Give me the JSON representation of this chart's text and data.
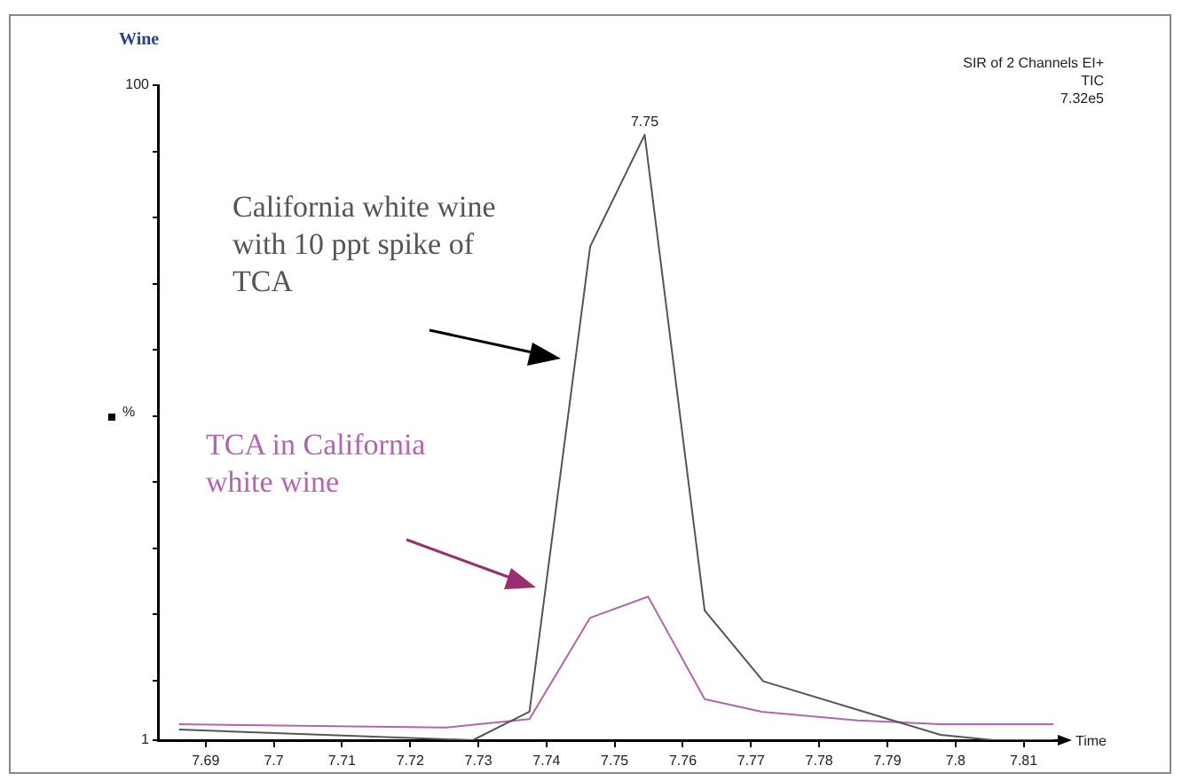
{
  "chart_data": {
    "type": "line",
    "title": "Wine",
    "ylabel": "%",
    "xlabel": "Time",
    "annotations": [
      "SIR of 2 Channels EI+",
      "TIC",
      "7.32e5",
      {
        "text": "7.75",
        "x": 7.7544,
        "y": 92.5
      }
    ],
    "xlim": [
      7.683,
      7.815
    ],
    "xticks": [
      7.69,
      7.7,
      7.71,
      7.72,
      7.73,
      7.74,
      7.75,
      7.76,
      7.77,
      7.78,
      7.79,
      7.8,
      7.81
    ],
    "ylim": [
      1,
      100
    ],
    "yticks": [
      1,
      {
        "value": 10,
        "label": null
      },
      {
        "value": 20,
        "label": null
      },
      {
        "value": 30,
        "label": null
      },
      {
        "value": 40,
        "label": null
      },
      {
        "value": 50,
        "label": null
      },
      {
        "value": 60,
        "label": null
      },
      {
        "value": 70,
        "label": null
      },
      {
        "value": 80,
        "label": null
      },
      {
        "value": 90,
        "label": null
      },
      100
    ],
    "grid": false,
    "legend": false,
    "marker": "none",
    "line_style": "solid",
    "series": [
      {
        "name": "California white wine with 10 ppt spike of TCA",
        "color": "#555555",
        "x": [
          7.6861,
          7.7292,
          7.7375,
          7.7464,
          7.7544,
          7.7632,
          7.7718,
          7.7978,
          7.8056,
          7.8144
        ],
        "values": [
          2.6,
          1,
          5.3,
          75.6,
          92.5,
          20.6,
          9.9,
          1.8,
          1,
          1
        ]
      },
      {
        "name": "TCA in California white wine",
        "color": "#b366ad",
        "x": [
          7.6861,
          7.7253,
          7.73,
          7.7375,
          7.7464,
          7.7549,
          7.7632,
          7.7716,
          7.7856,
          7.7978,
          7.8144
        ],
        "values": [
          3.4,
          2.9,
          3.4,
          4.2,
          19.5,
          22.7,
          7.2,
          5.3,
          4.0,
          3.4,
          3.4
        ]
      }
    ]
  }
}
